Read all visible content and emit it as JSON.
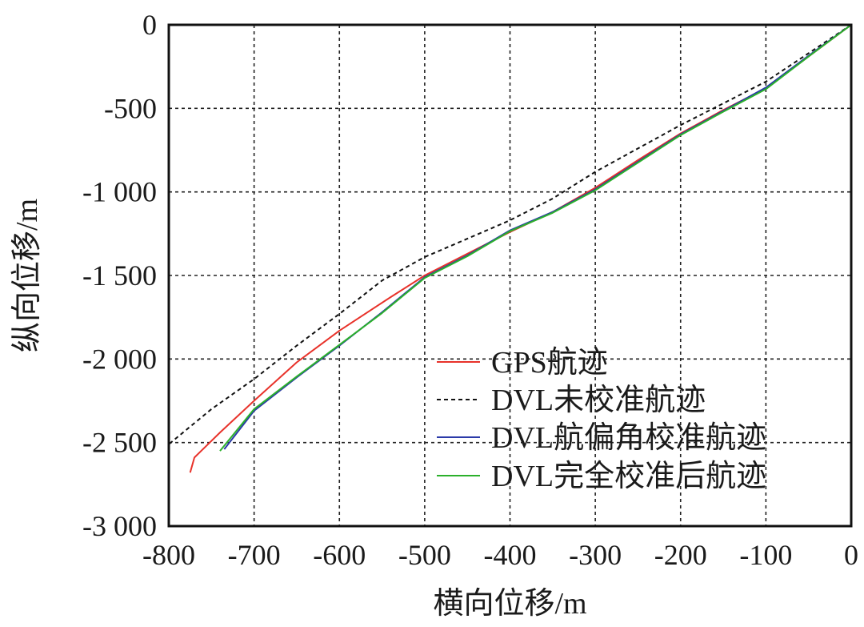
{
  "chart_data": {
    "type": "line",
    "xlabel": "横向位移/m",
    "ylabel": "纵向位移/m",
    "xlim": [
      -800,
      0
    ],
    "ylim": [
      -3000,
      0
    ],
    "x_ticks": [
      -800,
      -700,
      -600,
      -500,
      -400,
      -300,
      -200,
      -100,
      0
    ],
    "y_ticks": [
      0,
      -500,
      -1000,
      -1500,
      -2000,
      -2500,
      -3000
    ],
    "x_tick_labels": [
      "-800",
      "-700",
      "-600",
      "-500",
      "-400",
      "-300",
      "-200",
      "-100",
      "0"
    ],
    "y_tick_labels": [
      "0",
      "-500",
      "-1 000",
      "-1 500",
      "-2 000",
      "-2 500",
      "-3 000"
    ],
    "grid": true,
    "legend_position": "bottom-right",
    "series": [
      {
        "name": "GPS航迹",
        "color": "#e8322a",
        "style": "solid",
        "x": [
          0,
          -50,
          -100,
          -150,
          -200,
          -250,
          -300,
          -350,
          -400,
          -450,
          -500,
          -540,
          -600,
          -650,
          -700,
          -740,
          -770,
          -775
        ],
        "y": [
          0,
          -190,
          -380,
          -510,
          -650,
          -810,
          -975,
          -1120,
          -1240,
          -1370,
          -1500,
          -1630,
          -1830,
          -2020,
          -2250,
          -2440,
          -2590,
          -2680
        ]
      },
      {
        "name": "DVL未校准航迹",
        "color": "#111111",
        "style": "dashed",
        "x": [
          0,
          -50,
          -100,
          -150,
          -200,
          -250,
          -300,
          -350,
          -400,
          -450,
          -500,
          -550,
          -600,
          -650,
          -700,
          -750,
          -800
        ],
        "y": [
          0,
          -170,
          -340,
          -470,
          -600,
          -740,
          -880,
          -1040,
          -1170,
          -1280,
          -1390,
          -1530,
          -1730,
          -1920,
          -2120,
          -2300,
          -2510
        ]
      },
      {
        "name": "DVL航偏角校准航迹",
        "color": "#2b3aa8",
        "style": "solid",
        "x": [
          0,
          -50,
          -100,
          -150,
          -200,
          -250,
          -300,
          -350,
          -400,
          -450,
          -500,
          -550,
          -600,
          -650,
          -700,
          -735
        ],
        "y": [
          0,
          -185,
          -375,
          -515,
          -655,
          -820,
          -985,
          -1120,
          -1230,
          -1380,
          -1510,
          -1720,
          -1920,
          -2110,
          -2310,
          -2540
        ]
      },
      {
        "name": "DVL完全校准后航迹",
        "color": "#2bb02b",
        "style": "solid",
        "x": [
          0,
          -50,
          -100,
          -150,
          -200,
          -250,
          -300,
          -350,
          -400,
          -450,
          -500,
          -550,
          -600,
          -650,
          -700,
          -740
        ],
        "y": [
          0,
          -190,
          -385,
          -520,
          -660,
          -825,
          -990,
          -1125,
          -1235,
          -1385,
          -1515,
          -1725,
          -1915,
          -2105,
          -2300,
          -2550
        ]
      }
    ]
  }
}
